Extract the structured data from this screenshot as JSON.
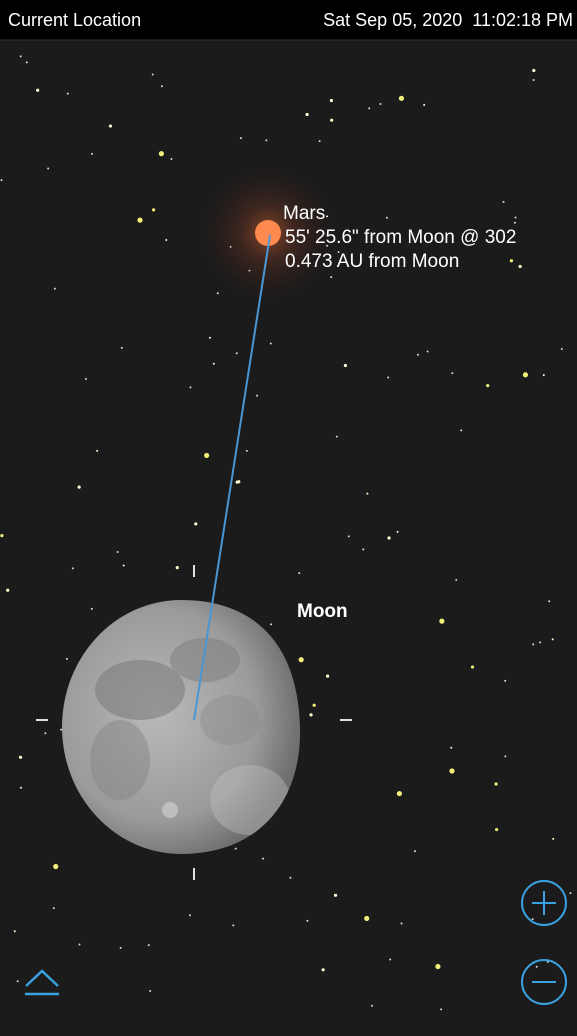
{
  "header": {
    "location": "Current Location",
    "datetime": "Sat Sep 05, 2020  11:02:18 PM"
  },
  "sky": {
    "target": {
      "name": "Mars",
      "separation": "55' 25.6\" from Moon @ 302",
      "distance": "0.473 AU from Moon"
    },
    "center_object": "Moon"
  }
}
